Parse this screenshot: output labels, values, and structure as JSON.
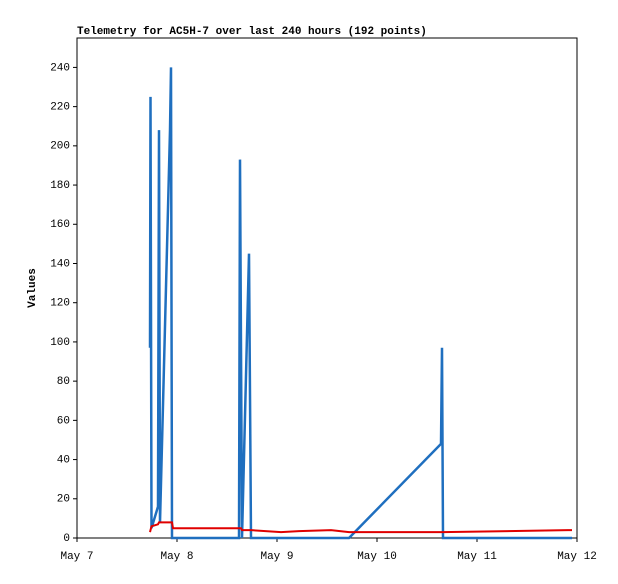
{
  "chart_data": {
    "type": "line",
    "title": "Telemetry for AC5H-7 over last 240 hours (192 points)",
    "y_label": "Values",
    "x": [
      0.73,
      0.735,
      0.745,
      0.81,
      0.82,
      0.83,
      0.93,
      0.94,
      0.95,
      0.96,
      1.62,
      1.63,
      1.64,
      1.65,
      1.72,
      1.73,
      1.74,
      2.04,
      2.22,
      2.54,
      2.72,
      3.64,
      3.65,
      3.66,
      4.91,
      4.95
    ],
    "series": [
      {
        "color": "#1f6fbf",
        "values": [
          97,
          225,
          5,
          16,
          208,
          8,
          208,
          240,
          0,
          0,
          0,
          193,
          97,
          0,
          145,
          73,
          0,
          0,
          0,
          0,
          0,
          48,
          97,
          0,
          0,
          0
        ]
      },
      {
        "color": "#e00000",
        "values": [
          3,
          4,
          6,
          7,
          8,
          8,
          8,
          8,
          8,
          5,
          5,
          5,
          5,
          4,
          4,
          4,
          4,
          3,
          3.5,
          4,
          3,
          3,
          3,
          3,
          4,
          4
        ]
      }
    ],
    "xlim": [
      0,
      5
    ],
    "xticks": [
      {
        "value": 0,
        "label": "May 7"
      },
      {
        "value": 1,
        "label": "May 8"
      },
      {
        "value": 2,
        "label": "May 9"
      },
      {
        "value": 3,
        "label": "May 10"
      },
      {
        "value": 4,
        "label": "May 11"
      },
      {
        "value": 5,
        "label": "May 12"
      }
    ],
    "ylim": [
      0,
      255
    ],
    "yticks": [
      0,
      20,
      40,
      60,
      80,
      100,
      120,
      140,
      160,
      180,
      200,
      220,
      240
    ]
  }
}
